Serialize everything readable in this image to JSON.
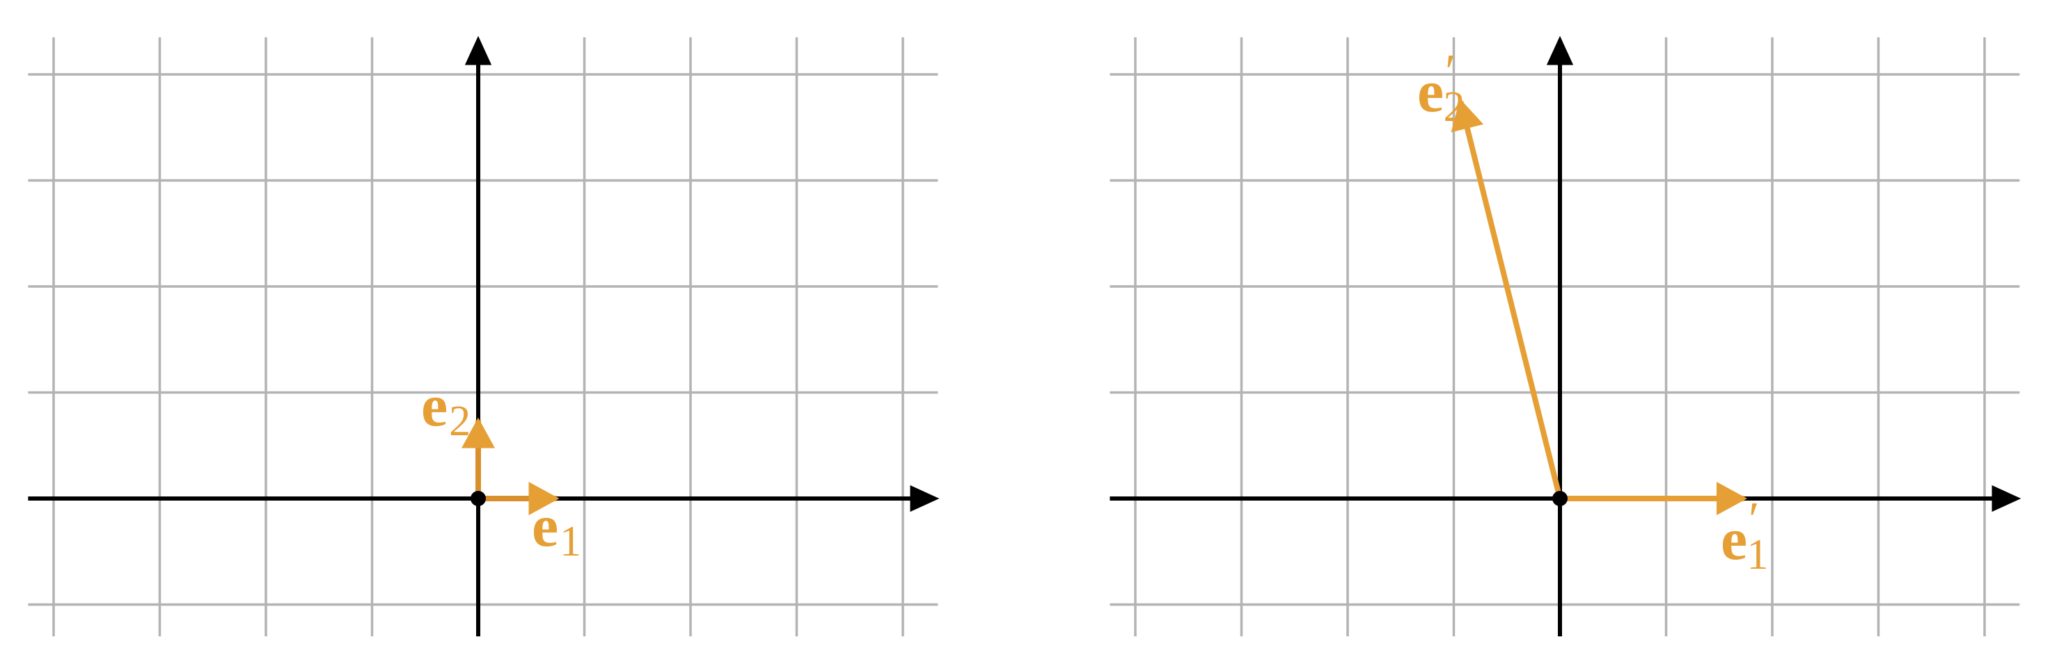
{
  "panels": [
    {
      "vectors": [
        {
          "label": {
            "base": "e",
            "prime": "",
            "sub": "1"
          },
          "x": 1,
          "y": 0
        },
        {
          "label": {
            "base": "e",
            "prime": "",
            "sub": "2"
          },
          "x": 0,
          "y": 1
        }
      ]
    },
    {
      "vectors": [
        {
          "label": {
            "base": "e",
            "prime": "′",
            "sub": "1"
          },
          "x": 2,
          "y": 0
        },
        {
          "label": {
            "base": "e",
            "prime": "′",
            "sub": "2"
          },
          "x": -1,
          "y": 4
        }
      ]
    }
  ]
}
